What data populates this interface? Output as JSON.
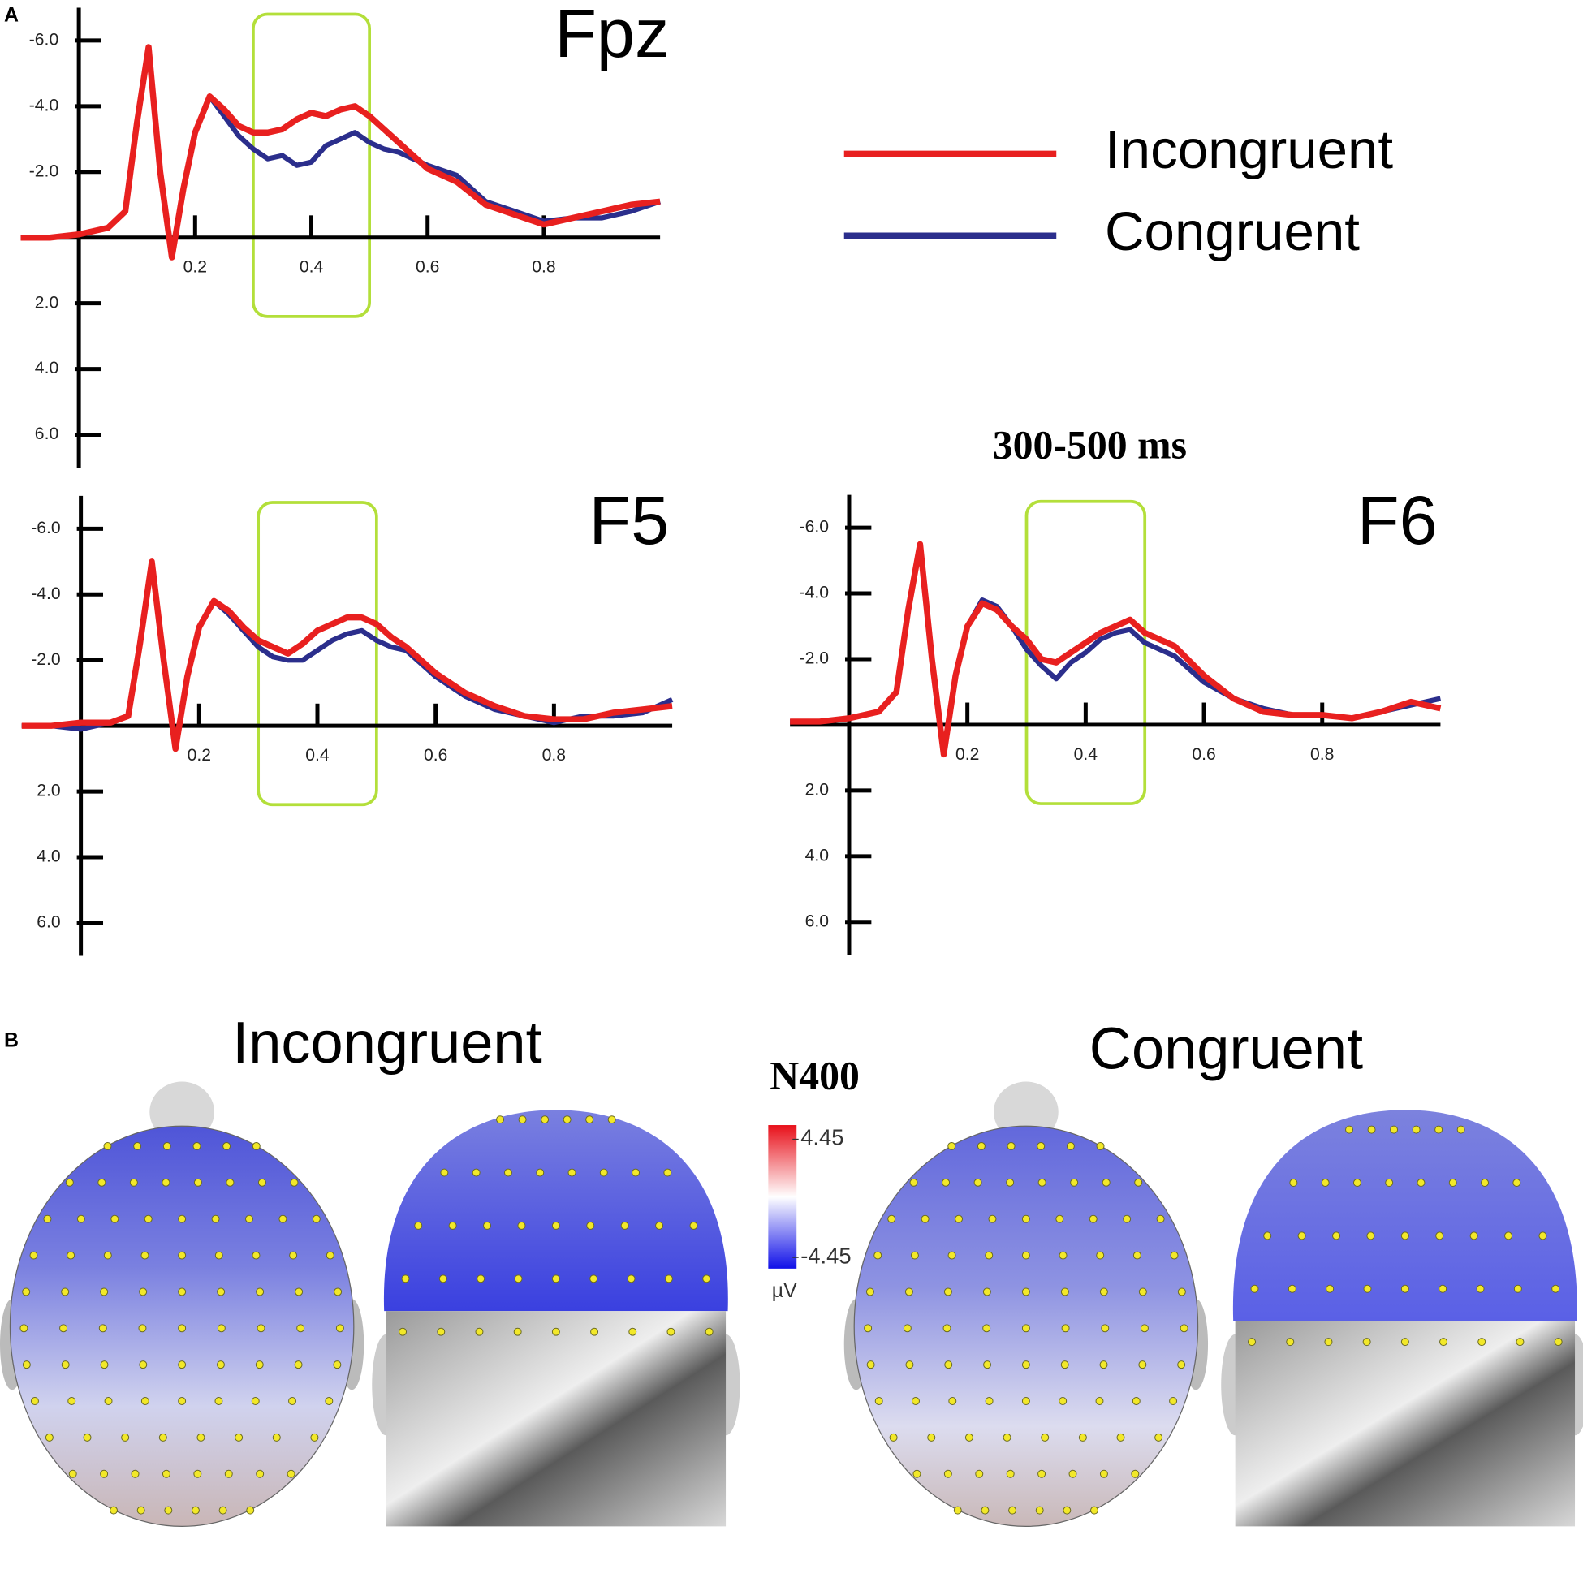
{
  "panel_labels": [
    "A",
    "B"
  ],
  "window_label": "300-500 ms",
  "legend_position": "upper right",
  "chart_data": [
    {
      "type": "line",
      "title": "Fpz",
      "y_inverted": true,
      "grid": false,
      "xlim": [
        -0.1,
        1.0
      ],
      "ylim": [
        -7,
        7
      ],
      "xticks": [
        0.2,
        0.4,
        0.6,
        0.8
      ],
      "yticks": [
        {
          "value": -6,
          "label": "-6.0"
        },
        {
          "value": -4,
          "label": "-4.0"
        },
        {
          "value": -2,
          "label": "-2.0"
        },
        {
          "value": 2,
          "label": "2.0"
        },
        {
          "value": 4,
          "label": "4.0"
        },
        {
          "value": 6,
          "label": "6.0"
        }
      ],
      "window": [
        0.3,
        0.5
      ],
      "window_color": "#b3df3a",
      "x": [
        -0.1,
        -0.05,
        0,
        0.05,
        0.08,
        0.1,
        0.12,
        0.14,
        0.16,
        0.18,
        0.2,
        0.225,
        0.25,
        0.275,
        0.3,
        0.325,
        0.35,
        0.375,
        0.4,
        0.425,
        0.45,
        0.475,
        0.5,
        0.525,
        0.55,
        0.6,
        0.65,
        0.7,
        0.75,
        0.8,
        0.85,
        0.9,
        0.95,
        1.0
      ],
      "series": [
        {
          "name": "Incongruent",
          "color": "#e8201f",
          "values": [
            0,
            0,
            -0.1,
            -0.3,
            -0.8,
            -3.5,
            -5.8,
            -2.0,
            0.6,
            -1.5,
            -3.2,
            -4.3,
            -3.9,
            -3.4,
            -3.2,
            -3.2,
            -3.3,
            -3.6,
            -3.8,
            -3.7,
            -3.9,
            -4.0,
            -3.7,
            -3.3,
            -2.9,
            -2.1,
            -1.7,
            -1.0,
            -0.7,
            -0.4,
            -0.6,
            -0.8,
            -1.0,
            -1.1
          ]
        },
        {
          "name": "Congruent",
          "color": "#2b2e8c",
          "values": [
            0,
            0,
            -0.1,
            -0.3,
            -0.8,
            -3.5,
            -5.8,
            -2.0,
            0.6,
            -1.5,
            -3.2,
            -4.3,
            -3.7,
            -3.1,
            -2.7,
            -2.4,
            -2.5,
            -2.2,
            -2.3,
            -2.8,
            -3.0,
            -3.2,
            -2.9,
            -2.7,
            -2.6,
            -2.2,
            -1.9,
            -1.1,
            -0.8,
            -0.5,
            -0.6,
            -0.6,
            -0.8,
            -1.1
          ]
        }
      ]
    },
    {
      "type": "line",
      "title": "F5",
      "y_inverted": true,
      "grid": false,
      "xlim": [
        -0.1,
        1.0
      ],
      "ylim": [
        -7,
        7
      ],
      "xticks": [
        0.2,
        0.4,
        0.6,
        0.8
      ],
      "yticks": [
        {
          "value": -6,
          "label": "-6.0"
        },
        {
          "value": -4,
          "label": "-4.0"
        },
        {
          "value": -2,
          "label": "-2.0"
        },
        {
          "value": 2,
          "label": "2.0"
        },
        {
          "value": 4,
          "label": "4.0"
        },
        {
          "value": 6,
          "label": "6.0"
        }
      ],
      "window": [
        0.3,
        0.5
      ],
      "window_color": "#b3df3a",
      "x": [
        -0.1,
        -0.05,
        0,
        0.05,
        0.08,
        0.1,
        0.12,
        0.14,
        0.16,
        0.18,
        0.2,
        0.225,
        0.25,
        0.275,
        0.3,
        0.325,
        0.35,
        0.375,
        0.4,
        0.425,
        0.45,
        0.475,
        0.5,
        0.525,
        0.55,
        0.6,
        0.65,
        0.7,
        0.75,
        0.8,
        0.85,
        0.9,
        0.95,
        1.0
      ],
      "series": [
        {
          "name": "Incongruent",
          "color": "#e8201f",
          "values": [
            0,
            0,
            -0.1,
            -0.1,
            -0.3,
            -2.5,
            -5.0,
            -2.0,
            0.7,
            -1.5,
            -3.0,
            -3.8,
            -3.5,
            -3.0,
            -2.6,
            -2.4,
            -2.2,
            -2.5,
            -2.9,
            -3.1,
            -3.3,
            -3.3,
            -3.1,
            -2.7,
            -2.4,
            -1.6,
            -1.0,
            -0.6,
            -0.3,
            -0.2,
            -0.2,
            -0.4,
            -0.5,
            -0.6
          ]
        },
        {
          "name": "Congruent",
          "color": "#2b2e8c",
          "values": [
            0,
            0,
            0.1,
            -0.1,
            -0.3,
            -2.5,
            -5.0,
            -2.0,
            0.7,
            -1.5,
            -3.0,
            -3.8,
            -3.4,
            -2.9,
            -2.4,
            -2.1,
            -2.0,
            -2.0,
            -2.3,
            -2.6,
            -2.8,
            -2.9,
            -2.6,
            -2.4,
            -2.3,
            -1.5,
            -0.9,
            -0.5,
            -0.3,
            -0.1,
            -0.3,
            -0.3,
            -0.4,
            -0.8
          ]
        }
      ]
    },
    {
      "type": "line",
      "title": "F6",
      "y_inverted": true,
      "grid": false,
      "xlim": [
        -0.1,
        1.0
      ],
      "ylim": [
        -7,
        7
      ],
      "xticks": [
        0.2,
        0.4,
        0.6,
        0.8
      ],
      "yticks": [
        {
          "value": -6,
          "label": "-6.0"
        },
        {
          "value": -4,
          "label": "-4.0"
        },
        {
          "value": -2,
          "label": "-2.0"
        },
        {
          "value": 2,
          "label": "2.0"
        },
        {
          "value": 4,
          "label": "4.0"
        },
        {
          "value": 6,
          "label": "6.0"
        }
      ],
      "window": [
        0.3,
        0.5
      ],
      "window_color": "#b3df3a",
      "x": [
        -0.1,
        -0.05,
        0,
        0.05,
        0.08,
        0.1,
        0.12,
        0.14,
        0.16,
        0.18,
        0.2,
        0.225,
        0.25,
        0.275,
        0.3,
        0.325,
        0.35,
        0.375,
        0.4,
        0.425,
        0.45,
        0.475,
        0.5,
        0.525,
        0.55,
        0.6,
        0.65,
        0.7,
        0.75,
        0.8,
        0.85,
        0.9,
        0.95,
        1.0
      ],
      "series": [
        {
          "name": "Incongruent",
          "color": "#e8201f",
          "values": [
            -0.1,
            -0.1,
            -0.2,
            -0.4,
            -1.0,
            -3.5,
            -5.5,
            -2.0,
            0.9,
            -1.5,
            -3.0,
            -3.7,
            -3.5,
            -3.0,
            -2.6,
            -2.0,
            -1.9,
            -2.2,
            -2.5,
            -2.8,
            -3.0,
            -3.2,
            -2.8,
            -2.6,
            -2.4,
            -1.5,
            -0.8,
            -0.4,
            -0.3,
            -0.3,
            -0.2,
            -0.4,
            -0.7,
            -0.5
          ]
        },
        {
          "name": "Congruent",
          "color": "#2b2e8c",
          "values": [
            -0.1,
            -0.1,
            -0.2,
            -0.4,
            -1.0,
            -3.5,
            -5.5,
            -2.0,
            0.9,
            -1.5,
            -3.0,
            -3.8,
            -3.6,
            -3.0,
            -2.3,
            -1.8,
            -1.4,
            -1.9,
            -2.2,
            -2.6,
            -2.8,
            -2.9,
            -2.5,
            -2.3,
            -2.1,
            -1.3,
            -0.8,
            -0.5,
            -0.3,
            -0.3,
            -0.2,
            -0.4,
            -0.6,
            -0.8
          ]
        }
      ]
    }
  ],
  "topography": {
    "conditions": [
      "Incongruent",
      "Congruent"
    ],
    "colorbar": {
      "title": "N400",
      "lim": [
        -4.45,
        4.45
      ],
      "ticks": [
        4.45,
        -4.45
      ],
      "unit": "µV"
    }
  }
}
